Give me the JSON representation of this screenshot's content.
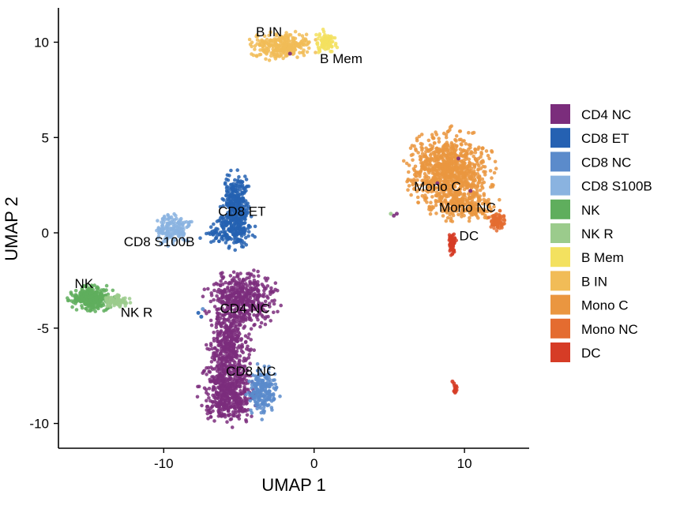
{
  "chart_data": {
    "type": "scatter",
    "title": "",
    "xlabel": "UMAP 1",
    "ylabel": "UMAP 2",
    "xlim": [
      -17,
      14.3
    ],
    "ylim": [
      -11.3,
      11.8
    ],
    "xticks": [
      -10,
      0,
      10
    ],
    "yticks": [
      -10,
      -5,
      0,
      5,
      10
    ],
    "xtick_labels": [
      "-10",
      "0",
      "10"
    ],
    "ytick_labels": [
      "-10",
      "-5",
      "0",
      "5",
      "10"
    ],
    "grid": false,
    "legend_position": "right",
    "legend": [
      {
        "name": "CD4 NC",
        "color": "#7B2D7C"
      },
      {
        "name": "CD8 ET",
        "color": "#2561B2"
      },
      {
        "name": "CD8 NC",
        "color": "#5B8BCB"
      },
      {
        "name": "CD8 S100B",
        "color": "#8AB3E0"
      },
      {
        "name": "NK",
        "color": "#5FAE5D"
      },
      {
        "name": "NK R",
        "color": "#9BCB8C"
      },
      {
        "name": "B Mem",
        "color": "#F3E15F"
      },
      {
        "name": "B IN",
        "color": "#F1BC57"
      },
      {
        "name": "Mono C",
        "color": "#EA9640"
      },
      {
        "name": "Mono NC",
        "color": "#E46C30"
      },
      {
        "name": "DC",
        "color": "#D63C26"
      }
    ],
    "cluster_labels": [
      {
        "text": "B IN",
        "x": -3.0,
        "y": 10.3
      },
      {
        "text": "B Mem",
        "x": 1.8,
        "y": 8.9
      },
      {
        "text": "Mono C",
        "x": 8.2,
        "y": 2.2
      },
      {
        "text": "Mono NC",
        "x": 10.2,
        "y": 1.1
      },
      {
        "text": "DC",
        "x": 10.3,
        "y": -0.4
      },
      {
        "text": "CD8 ET",
        "x": -4.8,
        "y": 0.9
      },
      {
        "text": "CD8 S100B",
        "x": -10.3,
        "y": -0.7
      },
      {
        "text": "NK",
        "x": -15.3,
        "y": -2.9
      },
      {
        "text": "NK R",
        "x": -11.8,
        "y": -4.4
      },
      {
        "text": "CD4 NC",
        "x": -4.6,
        "y": -4.2
      },
      {
        "text": "CD8 NC",
        "x": -4.2,
        "y": -7.5
      }
    ],
    "clusters": [
      {
        "name": "CD4 NC",
        "blobs": [
          {
            "cx": -4.8,
            "cy": -3.5,
            "rx": 2.3,
            "ry": 1.4,
            "n": 450
          },
          {
            "cx": -5.6,
            "cy": -6.0,
            "rx": 1.4,
            "ry": 2.0,
            "n": 380
          },
          {
            "cx": -5.7,
            "cy": -8.4,
            "rx": 1.8,
            "ry": 1.6,
            "n": 450
          }
        ]
      },
      {
        "name": "CD8 ET",
        "blobs": [
          {
            "cx": -5.2,
            "cy": 1.2,
            "rx": 0.9,
            "ry": 1.9,
            "n": 420
          },
          {
            "cx": -5.8,
            "cy": 0.0,
            "rx": 1.8,
            "ry": 0.7,
            "n": 80
          }
        ]
      },
      {
        "name": "CD8 NC",
        "blobs": [
          {
            "cx": -3.4,
            "cy": -8.3,
            "rx": 1.0,
            "ry": 1.3,
            "n": 200
          }
        ]
      },
      {
        "name": "CD8 S100B",
        "blobs": [
          {
            "cx": -9.4,
            "cy": 0.2,
            "rx": 1.2,
            "ry": 0.8,
            "n": 160
          }
        ]
      },
      {
        "name": "NK",
        "blobs": [
          {
            "cx": -14.8,
            "cy": -3.4,
            "rx": 1.4,
            "ry": 0.7,
            "n": 280
          }
        ]
      },
      {
        "name": "NK R",
        "blobs": [
          {
            "cx": -13.1,
            "cy": -3.6,
            "rx": 0.9,
            "ry": 0.35,
            "n": 70
          }
        ]
      },
      {
        "name": "B Mem",
        "blobs": [
          {
            "cx": 0.8,
            "cy": 10.0,
            "rx": 0.7,
            "ry": 0.6,
            "n": 90
          }
        ]
      },
      {
        "name": "B IN",
        "blobs": [
          {
            "cx": -2.1,
            "cy": 9.8,
            "rx": 2.1,
            "ry": 0.7,
            "n": 280
          }
        ]
      },
      {
        "name": "Mono C",
        "blobs": [
          {
            "cx": 9.0,
            "cy": 3.3,
            "rx": 2.7,
            "ry": 2.0,
            "n": 900
          },
          {
            "cx": 10.0,
            "cy": 1.4,
            "rx": 2.2,
            "ry": 0.8,
            "n": 200
          }
        ]
      },
      {
        "name": "Mono NC",
        "blobs": [
          {
            "cx": 12.2,
            "cy": 0.6,
            "rx": 0.6,
            "ry": 0.5,
            "n": 70
          }
        ]
      },
      {
        "name": "DC",
        "blobs": [
          {
            "cx": 9.2,
            "cy": -0.6,
            "rx": 0.25,
            "ry": 0.6,
            "n": 60
          },
          {
            "cx": 9.4,
            "cy": -8.2,
            "rx": 0.15,
            "ry": 0.25,
            "n": 15
          }
        ]
      }
    ]
  }
}
